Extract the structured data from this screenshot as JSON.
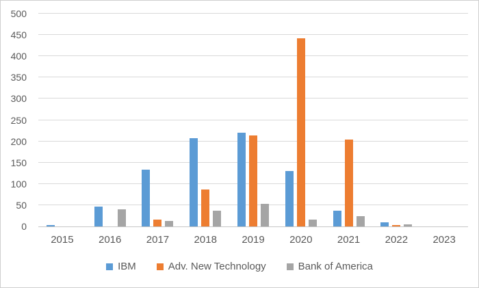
{
  "chart_data": {
    "type": "bar",
    "title": "",
    "xlabel": "",
    "ylabel": "",
    "categories": [
      "2015",
      "2016",
      "2017",
      "2018",
      "2019",
      "2020",
      "2021",
      "2022",
      "2023"
    ],
    "series": [
      {
        "name": "IBM",
        "color": "#5B9BD5",
        "values": [
          4,
          47,
          134,
          207,
          220,
          130,
          37,
          9,
          0
        ]
      },
      {
        "name": "Adv. New Technology",
        "color": "#ED7D31",
        "values": [
          0,
          0,
          16,
          87,
          214,
          443,
          205,
          4,
          0
        ]
      },
      {
        "name": "Bank of America",
        "color": "#A5A5A5",
        "values": [
          0,
          41,
          13,
          37,
          53,
          16,
          24,
          5,
          0
        ]
      }
    ],
    "ylim": [
      0,
      500
    ],
    "ytick_step": 50,
    "grid": true,
    "legend_position": "bottom"
  },
  "colors": {
    "gridline": "#d9d9d9",
    "axis_line": "#c6c6c6",
    "tick_label": "#595959",
    "chart_border": "#cfcfcf",
    "background": "#ffffff"
  }
}
